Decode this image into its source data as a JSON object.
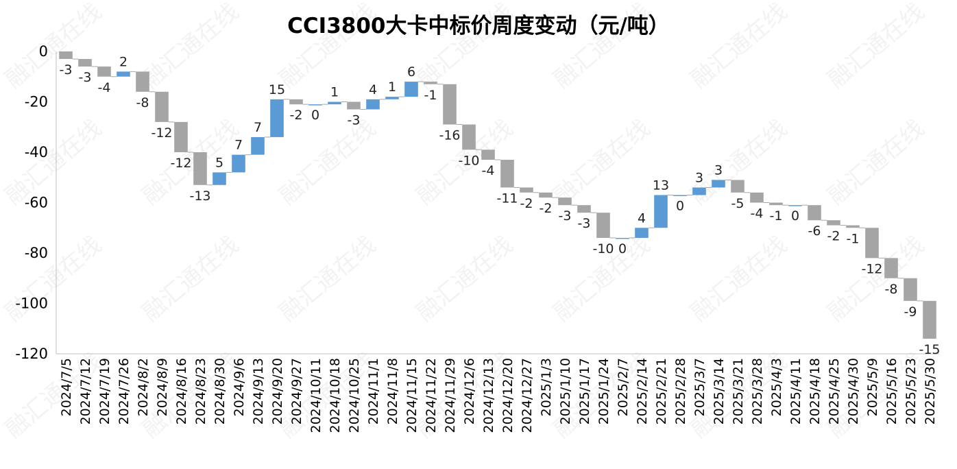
{
  "chart_data": {
    "type": "waterfall",
    "title": "CCI3800大卡中标价周度变动（元/吨）",
    "categories": [
      "2024/7/5",
      "2024/7/12",
      "2024/7/19",
      "2024/7/26",
      "2024/8/2",
      "2024/8/9",
      "2024/8/16",
      "2024/8/23",
      "2024/8/30",
      "2024/9/6",
      "2024/9/13",
      "2024/9/20",
      "2024/9/27",
      "2024/10/11",
      "2024/10/18",
      "2024/10/25",
      "2024/11/1",
      "2024/11/8",
      "2024/11/15",
      "2024/11/22",
      "2024/11/29",
      "2024/12/6",
      "2024/12/13",
      "2024/12/20",
      "2024/12/27",
      "2025/1/3",
      "2025/1/10",
      "2025/1/17",
      "2025/1/24",
      "2025/2/7",
      "2025/2/14",
      "2025/2/21",
      "2025/2/28",
      "2025/3/7",
      "2025/3/14",
      "2025/3/21",
      "2025/3/28",
      "2025/4/3",
      "2025/4/11",
      "2025/4/18",
      "2025/4/25",
      "2025/4/30",
      "2025/5/9",
      "2025/5/16",
      "2025/5/23",
      "2025/5/30"
    ],
    "values": [
      -3,
      -3,
      -4,
      2,
      -8,
      -12,
      -12,
      -13,
      5,
      7,
      7,
      15,
      -2,
      0,
      1,
      -3,
      4,
      1,
      6,
      -1,
      -16,
      -10,
      -4,
      -11,
      -2,
      -2,
      -3,
      -3,
      -10,
      0,
      4,
      13,
      0,
      3,
      3,
      -5,
      -4,
      -1,
      0,
      -6,
      -2,
      -1,
      -12,
      -8,
      -9,
      -15
    ],
    "yticks": [
      "0",
      "-20",
      "-40",
      "-60",
      "-80",
      "-100",
      "-120"
    ],
    "ylim": [
      -120,
      0
    ],
    "colors": {
      "increase": "#5b9bd5",
      "decrease": "#a5a5a5",
      "connector": "#a5a5a5"
    }
  },
  "watermark": "融汇通在线"
}
